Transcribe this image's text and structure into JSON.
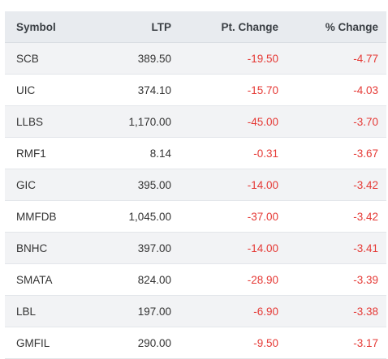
{
  "table": {
    "headers": {
      "symbol": "Symbol",
      "ltp": "LTP",
      "pt_change": "Pt. Change",
      "pct_change": "% Change"
    },
    "rows": [
      {
        "symbol": "SCB",
        "ltp": "389.50",
        "pt_change": "-19.50",
        "pct_change": "-4.77"
      },
      {
        "symbol": "UIC",
        "ltp": "374.10",
        "pt_change": "-15.70",
        "pct_change": "-4.03"
      },
      {
        "symbol": "LLBS",
        "ltp": "1,170.00",
        "pt_change": "-45.00",
        "pct_change": "-3.70"
      },
      {
        "symbol": "RMF1",
        "ltp": "8.14",
        "pt_change": "-0.31",
        "pct_change": "-3.67"
      },
      {
        "symbol": "GIC",
        "ltp": "395.00",
        "pt_change": "-14.00",
        "pct_change": "-3.42"
      },
      {
        "symbol": "MMFDB",
        "ltp": "1,045.00",
        "pt_change": "-37.00",
        "pct_change": "-3.42"
      },
      {
        "symbol": "BNHC",
        "ltp": "397.00",
        "pt_change": "-14.00",
        "pct_change": "-3.41"
      },
      {
        "symbol": "SMATA",
        "ltp": "824.00",
        "pt_change": "-28.90",
        "pct_change": "-3.39"
      },
      {
        "symbol": "LBL",
        "ltp": "197.00",
        "pt_change": "-6.90",
        "pct_change": "-3.38"
      },
      {
        "symbol": "GMFIL",
        "ltp": "290.00",
        "pt_change": "-9.50",
        "pct_change": "-3.17"
      }
    ]
  },
  "colors": {
    "negative": "#e53935",
    "header_bg": "#e8ebef",
    "alt_row_bg": "#f2f3f5"
  }
}
